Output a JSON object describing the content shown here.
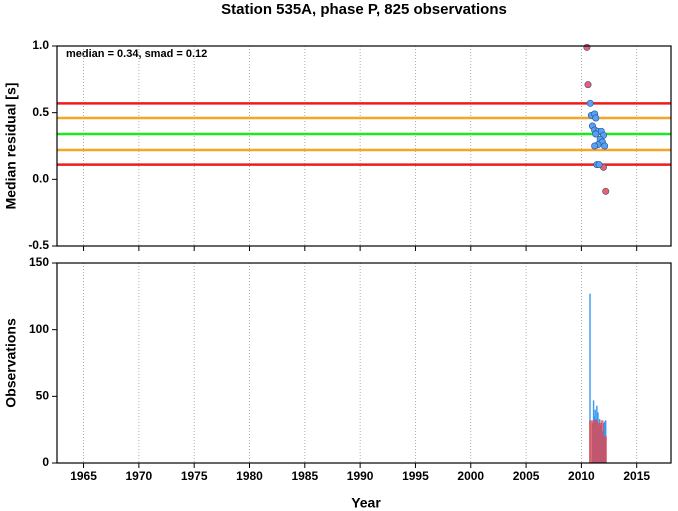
{
  "chart_data": [
    {
      "type": "scatter",
      "title": "Station 535A, phase P, 825 observations",
      "ylabel": "Median residual [s]",
      "annotation": "median = 0.34, smad = 0.12",
      "xlim": [
        1962.6,
        2018.1
      ],
      "xticks": [
        1965,
        1970,
        1975,
        1980,
        1985,
        1990,
        1995,
        2000,
        2005,
        2010,
        2015
      ],
      "ylim": [
        -0.5,
        1.0
      ],
      "yticks": [
        {
          "value": -0.5,
          "label": "-0.5"
        },
        {
          "value": 0,
          "label": "0.0"
        },
        0.5,
        {
          "value": 1,
          "label": "1.0"
        }
      ],
      "grid": true,
      "hlines": [
        {
          "value": 0.57,
          "color": "#ee1c1c"
        },
        {
          "value": 0.46,
          "color": "#f5a623"
        },
        {
          "value": 0.34,
          "color": "#1ee81e"
        },
        {
          "value": 0.22,
          "color": "#f5a623"
        },
        {
          "value": 0.11,
          "color": "#ee1c1c"
        }
      ],
      "series": [
        {
          "color": "#f06060",
          "x": [
            2010.5,
            2010.6,
            2012.0,
            2012.2
          ],
          "values": [
            0.99,
            0.71,
            0.09,
            -0.09
          ]
        },
        {
          "color": "#5aa0f0",
          "x": [
            2010.8,
            2010.9,
            2011.2,
            2011.3,
            2011.0,
            2011.2,
            2011.5,
            2011.8,
            2011.3,
            2012.0,
            2011.7,
            2011.9,
            2011.5,
            2011.2,
            2012.1,
            2011.4,
            2011.6
          ],
          "values": [
            0.57,
            0.48,
            0.49,
            0.46,
            0.4,
            0.37,
            0.36,
            0.36,
            0.34,
            0.33,
            0.3,
            0.28,
            0.26,
            0.25,
            0.25,
            0.11,
            0.11
          ]
        }
      ]
    },
    {
      "type": "histogram",
      "ylabel": "Observations",
      "xlabel": "Year",
      "xlim": [
        1962.6,
        2018.1
      ],
      "xticks": [
        1965,
        1970,
        1975,
        1980,
        1985,
        1990,
        1995,
        2000,
        2005,
        2010,
        2015
      ],
      "ylim": [
        0,
        150
      ],
      "yticks": [
        0,
        50,
        100,
        150
      ],
      "grid": true,
      "series": [
        {
          "color": "#3c96f0",
          "x": [
            2010.78,
            2011.0,
            2011.05,
            2011.1,
            2011.15,
            2011.2,
            2011.25,
            2011.3,
            2011.35,
            2011.4,
            2011.45,
            2011.5,
            2011.55,
            2011.6,
            2011.65,
            2011.7,
            2011.75,
            2011.8,
            2011.85,
            2011.9,
            2011.95,
            2012.0,
            2012.05,
            2012.1,
            2012.15,
            2012.2
          ],
          "values": [
            127,
            30,
            22,
            47,
            25,
            35,
            40,
            20,
            33,
            43,
            28,
            38,
            15,
            25,
            33,
            28,
            10,
            30,
            20,
            24,
            18,
            30,
            26,
            31,
            22,
            32
          ]
        },
        {
          "color": "#f04040",
          "bins": [
            2010.7,
            2011.0,
            2011.25,
            2011.5,
            2011.75,
            2012.0,
            2012.3
          ],
          "values": [
            32,
            32,
            32,
            30,
            32,
            20
          ]
        }
      ]
    }
  ]
}
